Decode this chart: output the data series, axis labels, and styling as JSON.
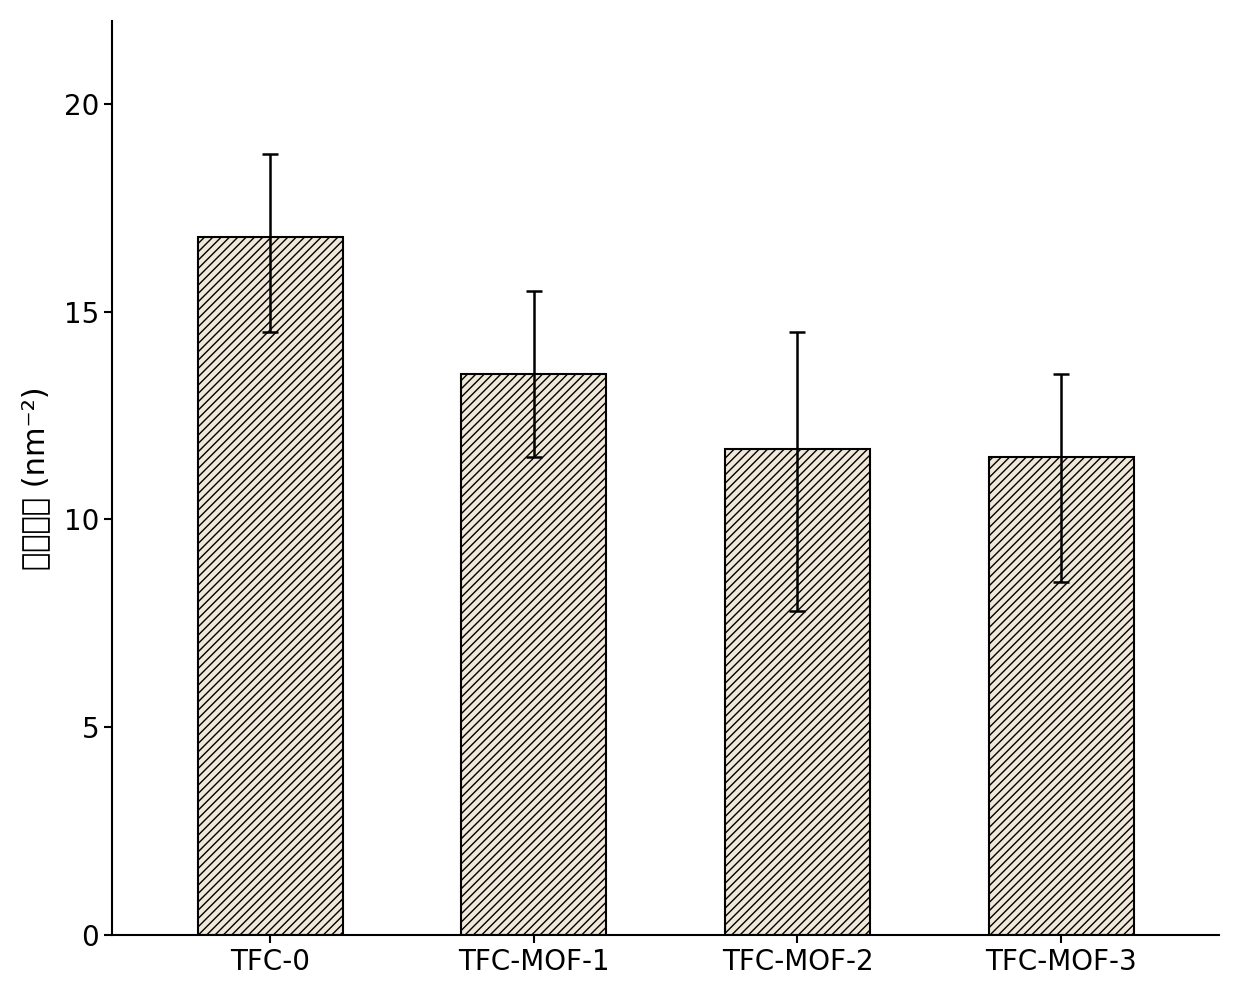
{
  "categories": [
    "TFC-0",
    "TFC-MOF-1",
    "TFC-MOF-2",
    "TFC-MOF-3"
  ],
  "values": [
    16.8,
    13.5,
    11.7,
    11.5
  ],
  "errors_upper": [
    2.0,
    2.0,
    2.8,
    2.0
  ],
  "errors_lower": [
    2.3,
    2.0,
    3.9,
    3.0
  ],
  "ylabel": "羧基密度 (nm⁻²)",
  "ylim": [
    0,
    22
  ],
  "yticks": [
    0,
    5,
    10,
    15,
    20
  ],
  "bar_color": "#f0e8d8",
  "bar_edgecolor": "#000000",
  "hatch_pattern": "////",
  "hatch_color": "#888888",
  "bar_width": 0.55,
  "figsize": [
    12.4,
    9.97
  ],
  "dpi": 100,
  "background_color": "#ffffff",
  "title_fontsize": 20,
  "axis_label_fontsize": 22,
  "tick_fontsize": 20,
  "errorbar_capsize": 6,
  "errorbar_linewidth": 1.8,
  "errorbar_capthick": 1.8
}
